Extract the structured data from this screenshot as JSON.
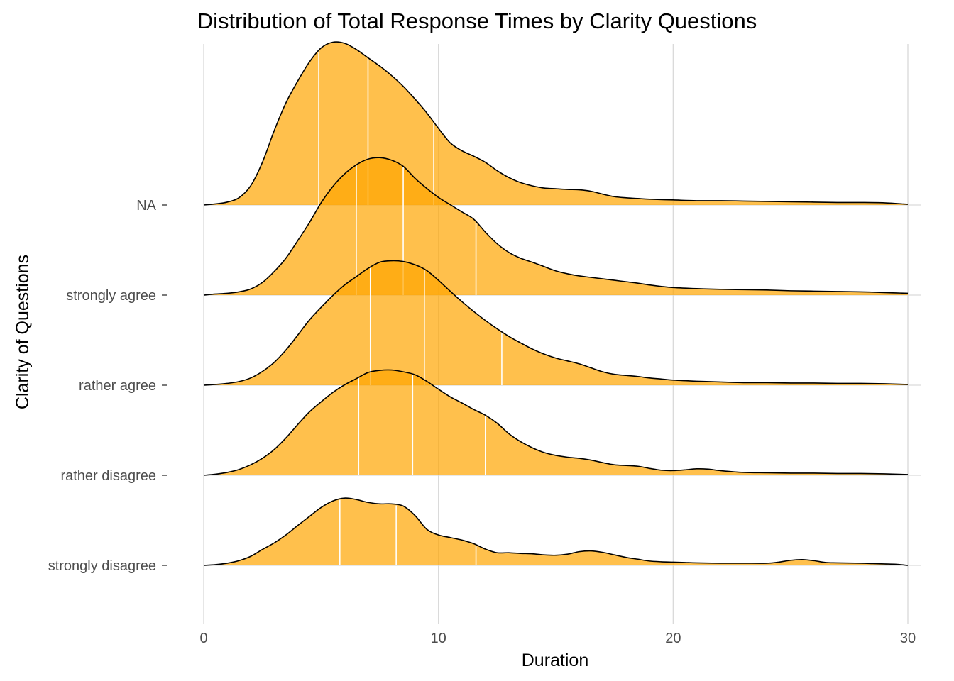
{
  "chart_data": {
    "type": "ridgeline",
    "title": "Distribution of Total Response Times by Clarity Questions",
    "xlabel": "Duration",
    "ylabel": "Clarity of Questions",
    "xlim": [
      0,
      30
    ],
    "x_ticks": [
      "0",
      "10",
      "20",
      "30"
    ],
    "x_tick_values": [
      0,
      10,
      20,
      30
    ],
    "grid": true,
    "fill_color": "#ffa500",
    "quantile_color": "#ffffff",
    "outline_color": "#000000",
    "series": [
      {
        "name": "strongly disagree",
        "quantiles": [
          5.8,
          8.2,
          11.6
        ],
        "density": [
          [
            0,
            0.0
          ],
          [
            0.5,
            0.02
          ],
          [
            1,
            0.06
          ],
          [
            1.5,
            0.13
          ],
          [
            2,
            0.25
          ],
          [
            2.5,
            0.44
          ],
          [
            3,
            0.62
          ],
          [
            3.5,
            0.84
          ],
          [
            4,
            1.1
          ],
          [
            4.5,
            1.35
          ],
          [
            5,
            1.6
          ],
          [
            5.5,
            1.78
          ],
          [
            6,
            1.86
          ],
          [
            6.5,
            1.82
          ],
          [
            7,
            1.74
          ],
          [
            7.5,
            1.7
          ],
          [
            8,
            1.7
          ],
          [
            8.5,
            1.64
          ],
          [
            9,
            1.38
          ],
          [
            9.5,
            1.0
          ],
          [
            10,
            0.84
          ],
          [
            10.5,
            0.77
          ],
          [
            11,
            0.7
          ],
          [
            11.5,
            0.6
          ],
          [
            12,
            0.45
          ],
          [
            12.5,
            0.35
          ],
          [
            13,
            0.35
          ],
          [
            13.5,
            0.33
          ],
          [
            14,
            0.32
          ],
          [
            14.5,
            0.29
          ],
          [
            15,
            0.28
          ],
          [
            15.5,
            0.31
          ],
          [
            16,
            0.38
          ],
          [
            16.5,
            0.4
          ],
          [
            17,
            0.36
          ],
          [
            17.5,
            0.29
          ],
          [
            18,
            0.22
          ],
          [
            18.5,
            0.17
          ],
          [
            19,
            0.12
          ],
          [
            19.5,
            0.1
          ],
          [
            20,
            0.09
          ],
          [
            20.5,
            0.08
          ],
          [
            21,
            0.07
          ],
          [
            22,
            0.06
          ],
          [
            23,
            0.06
          ],
          [
            24,
            0.06
          ],
          [
            24.5,
            0.09
          ],
          [
            25,
            0.14
          ],
          [
            25.5,
            0.16
          ],
          [
            26,
            0.13
          ],
          [
            26.5,
            0.08
          ],
          [
            27,
            0.07
          ],
          [
            28,
            0.06
          ],
          [
            28.5,
            0.05
          ],
          [
            29,
            0.04
          ],
          [
            29.5,
            0.03
          ],
          [
            30,
            0.0
          ]
        ]
      },
      {
        "name": "rather disagree",
        "quantiles": [
          6.6,
          8.9,
          12.0
        ],
        "density": [
          [
            0,
            0.0
          ],
          [
            0.5,
            0.03
          ],
          [
            1,
            0.08
          ],
          [
            1.5,
            0.16
          ],
          [
            2,
            0.29
          ],
          [
            2.5,
            0.47
          ],
          [
            3,
            0.71
          ],
          [
            3.5,
            1.03
          ],
          [
            4,
            1.4
          ],
          [
            4.5,
            1.75
          ],
          [
            5,
            2.03
          ],
          [
            5.5,
            2.29
          ],
          [
            6,
            2.5
          ],
          [
            6.5,
            2.67
          ],
          [
            7,
            2.84
          ],
          [
            7.5,
            2.9
          ],
          [
            8,
            2.91
          ],
          [
            8.5,
            2.86
          ],
          [
            9,
            2.78
          ],
          [
            9.5,
            2.6
          ],
          [
            10,
            2.38
          ],
          [
            10.5,
            2.17
          ],
          [
            11,
            2.0
          ],
          [
            11.5,
            1.82
          ],
          [
            12,
            1.66
          ],
          [
            12.5,
            1.44
          ],
          [
            13,
            1.15
          ],
          [
            13.5,
            0.93
          ],
          [
            14,
            0.76
          ],
          [
            14.5,
            0.63
          ],
          [
            15,
            0.55
          ],
          [
            15.5,
            0.5
          ],
          [
            16,
            0.47
          ],
          [
            16.5,
            0.42
          ],
          [
            17,
            0.35
          ],
          [
            17.5,
            0.29
          ],
          [
            18,
            0.27
          ],
          [
            18.5,
            0.25
          ],
          [
            19,
            0.19
          ],
          [
            19.5,
            0.14
          ],
          [
            20,
            0.13
          ],
          [
            20.5,
            0.15
          ],
          [
            21,
            0.18
          ],
          [
            21.5,
            0.17
          ],
          [
            22,
            0.13
          ],
          [
            23,
            0.08
          ],
          [
            24,
            0.07
          ],
          [
            25,
            0.06
          ],
          [
            26,
            0.06
          ],
          [
            27,
            0.05
          ],
          [
            28,
            0.05
          ],
          [
            29,
            0.04
          ],
          [
            30,
            0.02
          ]
        ]
      },
      {
        "name": "rather agree",
        "quantiles": [
          7.1,
          9.4,
          12.7
        ],
        "density": [
          [
            0,
            0.0
          ],
          [
            0.5,
            0.02
          ],
          [
            1,
            0.05
          ],
          [
            1.5,
            0.1
          ],
          [
            2,
            0.2
          ],
          [
            2.5,
            0.38
          ],
          [
            3,
            0.63
          ],
          [
            3.5,
            0.97
          ],
          [
            4,
            1.38
          ],
          [
            4.5,
            1.8
          ],
          [
            5,
            2.15
          ],
          [
            5.5,
            2.48
          ],
          [
            6,
            2.77
          ],
          [
            6.5,
            3.0
          ],
          [
            7,
            3.23
          ],
          [
            7.5,
            3.4
          ],
          [
            8,
            3.44
          ],
          [
            8.5,
            3.42
          ],
          [
            9,
            3.33
          ],
          [
            9.5,
            3.17
          ],
          [
            10,
            2.9
          ],
          [
            10.5,
            2.6
          ],
          [
            11,
            2.31
          ],
          [
            11.5,
            2.04
          ],
          [
            12,
            1.79
          ],
          [
            12.5,
            1.56
          ],
          [
            13,
            1.35
          ],
          [
            13.5,
            1.17
          ],
          [
            14,
            1.0
          ],
          [
            14.5,
            0.86
          ],
          [
            15,
            0.75
          ],
          [
            15.5,
            0.67
          ],
          [
            16,
            0.59
          ],
          [
            16.5,
            0.48
          ],
          [
            17,
            0.37
          ],
          [
            17.5,
            0.3
          ],
          [
            18,
            0.27
          ],
          [
            18.5,
            0.24
          ],
          [
            19,
            0.2
          ],
          [
            19.5,
            0.17
          ],
          [
            20,
            0.14
          ],
          [
            21,
            0.11
          ],
          [
            22,
            0.09
          ],
          [
            23,
            0.07
          ],
          [
            24,
            0.07
          ],
          [
            25,
            0.06
          ],
          [
            26,
            0.06
          ],
          [
            27,
            0.05
          ],
          [
            28,
            0.05
          ],
          [
            29,
            0.04
          ],
          [
            30,
            0.02
          ]
        ]
      },
      {
        "name": "strongly agree",
        "quantiles": [
          6.5,
          8.5,
          11.6
        ],
        "density": [
          [
            0,
            0.0
          ],
          [
            0.5,
            0.03
          ],
          [
            1,
            0.05
          ],
          [
            1.5,
            0.09
          ],
          [
            2,
            0.17
          ],
          [
            2.5,
            0.35
          ],
          [
            3,
            0.65
          ],
          [
            3.5,
            1.02
          ],
          [
            4,
            1.5
          ],
          [
            4.5,
            2.0
          ],
          [
            5,
            2.55
          ],
          [
            5.5,
            3.0
          ],
          [
            6,
            3.35
          ],
          [
            6.5,
            3.6
          ],
          [
            7,
            3.76
          ],
          [
            7.5,
            3.8
          ],
          [
            8,
            3.73
          ],
          [
            8.5,
            3.56
          ],
          [
            9,
            3.23
          ],
          [
            9.5,
            2.95
          ],
          [
            10,
            2.7
          ],
          [
            10.5,
            2.5
          ],
          [
            11,
            2.3
          ],
          [
            11.5,
            2.1
          ],
          [
            12,
            1.74
          ],
          [
            12.5,
            1.42
          ],
          [
            13,
            1.18
          ],
          [
            13.5,
            1.02
          ],
          [
            14,
            0.91
          ],
          [
            14.5,
            0.79
          ],
          [
            15,
            0.67
          ],
          [
            15.5,
            0.59
          ],
          [
            16,
            0.53
          ],
          [
            16.5,
            0.49
          ],
          [
            17,
            0.45
          ],
          [
            17.5,
            0.41
          ],
          [
            18,
            0.37
          ],
          [
            18.5,
            0.33
          ],
          [
            19,
            0.28
          ],
          [
            19.5,
            0.24
          ],
          [
            20,
            0.21
          ],
          [
            21,
            0.18
          ],
          [
            22,
            0.16
          ],
          [
            23,
            0.15
          ],
          [
            24,
            0.14
          ],
          [
            25,
            0.12
          ],
          [
            26,
            0.11
          ],
          [
            27,
            0.1
          ],
          [
            28,
            0.09
          ],
          [
            29,
            0.07
          ],
          [
            29.5,
            0.06
          ],
          [
            30,
            0.05
          ]
        ]
      },
      {
        "name": "NA",
        "quantiles": [
          4.9,
          7.0,
          9.8
        ],
        "density": [
          [
            0,
            0.0
          ],
          [
            0.5,
            0.03
          ],
          [
            1,
            0.08
          ],
          [
            1.5,
            0.2
          ],
          [
            2,
            0.53
          ],
          [
            2.5,
            1.18
          ],
          [
            3,
            2.05
          ],
          [
            3.5,
            2.82
          ],
          [
            4,
            3.42
          ],
          [
            4.5,
            3.95
          ],
          [
            5,
            4.34
          ],
          [
            5.5,
            4.5
          ],
          [
            6,
            4.47
          ],
          [
            6.5,
            4.3
          ],
          [
            7,
            4.07
          ],
          [
            7.5,
            3.84
          ],
          [
            8,
            3.58
          ],
          [
            8.5,
            3.28
          ],
          [
            9,
            2.93
          ],
          [
            9.5,
            2.55
          ],
          [
            10,
            2.12
          ],
          [
            10.5,
            1.72
          ],
          [
            11,
            1.5
          ],
          [
            11.5,
            1.35
          ],
          [
            12,
            1.18
          ],
          [
            12.5,
            0.95
          ],
          [
            13,
            0.76
          ],
          [
            13.5,
            0.62
          ],
          [
            14,
            0.53
          ],
          [
            14.5,
            0.47
          ],
          [
            15,
            0.45
          ],
          [
            15.5,
            0.43
          ],
          [
            16,
            0.42
          ],
          [
            16.5,
            0.38
          ],
          [
            17,
            0.3
          ],
          [
            17.5,
            0.23
          ],
          [
            18,
            0.2
          ],
          [
            18.5,
            0.18
          ],
          [
            19,
            0.16
          ],
          [
            20,
            0.14
          ],
          [
            21,
            0.12
          ],
          [
            22,
            0.12
          ],
          [
            23,
            0.11
          ],
          [
            24,
            0.1
          ],
          [
            25,
            0.09
          ],
          [
            26,
            0.08
          ],
          [
            27,
            0.07
          ],
          [
            28,
            0.07
          ],
          [
            29,
            0.06
          ],
          [
            30,
            0.02
          ]
        ]
      }
    ]
  }
}
